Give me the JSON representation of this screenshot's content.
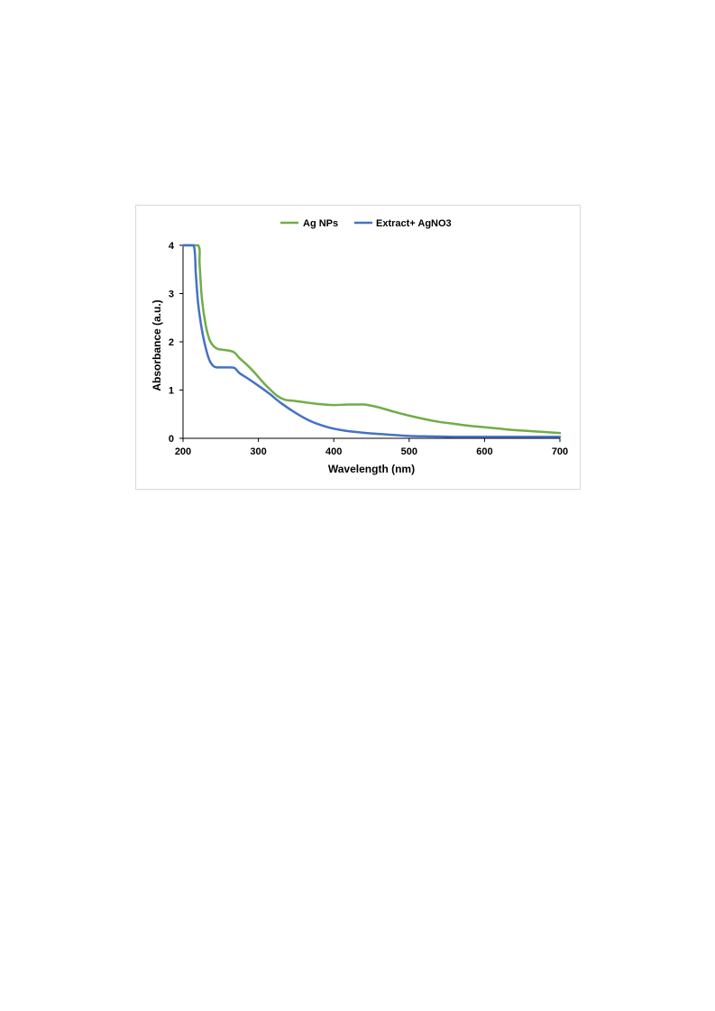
{
  "chart_data": {
    "type": "line",
    "title": "",
    "xlabel": "Wavelength (nm)",
    "ylabel": "Absorbance (a.u.)",
    "xlim": [
      200,
      700
    ],
    "ylim": [
      0,
      4
    ],
    "xticks": [
      "200",
      "300",
      "400",
      "500",
      "600",
      "700"
    ],
    "yticks": [
      "0",
      "1",
      "2",
      "3",
      "4"
    ],
    "grid": false,
    "legend_position": "top",
    "series": [
      {
        "name": "Ag NPs",
        "color": "#70ad47",
        "x": [
          200,
          220,
          222,
          225,
          230,
          235,
          240,
          245,
          250,
          260,
          268,
          275,
          285,
          295,
          305,
          315,
          325,
          335,
          345,
          360,
          380,
          400,
          420,
          440,
          460,
          480,
          500,
          520,
          540,
          560,
          580,
          600,
          620,
          640,
          660,
          680,
          700
        ],
        "y": [
          4,
          4,
          3.6,
          2.9,
          2.35,
          2.05,
          1.92,
          1.86,
          1.84,
          1.82,
          1.78,
          1.66,
          1.52,
          1.36,
          1.18,
          1.02,
          0.88,
          0.8,
          0.78,
          0.75,
          0.71,
          0.69,
          0.7,
          0.7,
          0.64,
          0.55,
          0.47,
          0.4,
          0.34,
          0.3,
          0.26,
          0.23,
          0.2,
          0.17,
          0.15,
          0.13,
          0.11
        ]
      },
      {
        "name": "Extract+ AgNO3",
        "color": "#4472c4",
        "x": [
          200,
          214,
          217,
          220,
          225,
          230,
          235,
          240,
          245,
          250,
          260,
          268,
          275,
          285,
          300,
          315,
          330,
          350,
          370,
          390,
          410,
          430,
          450,
          470,
          500,
          530,
          560,
          600,
          650,
          700
        ],
        "y": [
          4,
          4,
          3.4,
          2.8,
          2.25,
          1.88,
          1.62,
          1.5,
          1.47,
          1.47,
          1.47,
          1.46,
          1.35,
          1.25,
          1.09,
          0.92,
          0.73,
          0.52,
          0.35,
          0.24,
          0.17,
          0.13,
          0.1,
          0.08,
          0.05,
          0.04,
          0.03,
          0.03,
          0.03,
          0.03
        ]
      }
    ]
  }
}
